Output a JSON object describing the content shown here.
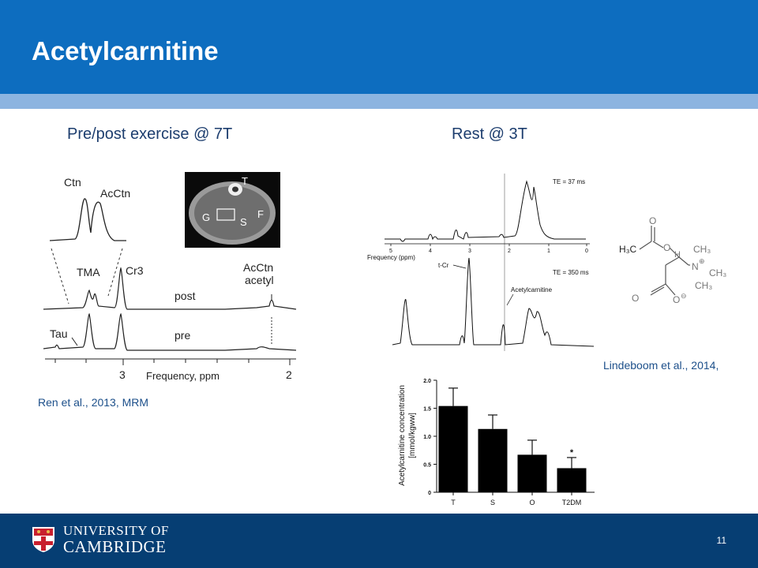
{
  "slide": {
    "title": "Acetylcarnitine",
    "left_heading": "Pre/post exercise @ 7T",
    "right_heading": "Rest @ 3T",
    "left_citation": "Ren et al., 2013, MRM",
    "right_citation": "Lindeboom et al., 2014,",
    "page_number": "11"
  },
  "footer": {
    "university_line1": "UNIVERSITY OF",
    "university_line2": "CAMBRIDGE"
  },
  "left_figure": {
    "labels": {
      "ctn": "Ctn",
      "acctn": "AcCtn",
      "tma": "TMA",
      "cr3": "Cr3",
      "acctn_acetyl_1": "AcCtn",
      "acctn_acetyl_2": "acetyl",
      "post": "post",
      "pre": "pre",
      "tau": "Tau",
      "tick_3": "3",
      "tick_2": "2",
      "freq": "Frequency, ppm"
    },
    "mri_labels": {
      "t": "T",
      "g": "G",
      "s": "S",
      "f": "F"
    }
  },
  "right_spectrum": {
    "te1": "TE = 37 ms",
    "te2": "TE = 350 ms",
    "freq_label": "Frequency (ppm)",
    "ticks": [
      "5",
      "4",
      "3",
      "2",
      "1",
      "0"
    ],
    "tcr": "t-Cr",
    "acetylcarnitine": "Acetylcarnitine"
  },
  "structure": {
    "h3c": "H₃C",
    "h": "H",
    "ch3a": "CH₃",
    "ch3b": "CH₃",
    "ch3c": "CH₃",
    "n": "N",
    "plus": "⊕",
    "o1": "O",
    "o2": "O",
    "o3": "O",
    "minus": "⊖"
  },
  "chart_data": {
    "type": "bar",
    "categories": [
      "T",
      "S",
      "O",
      "T2DM"
    ],
    "values": [
      1.54,
      1.13,
      0.67,
      0.43
    ],
    "errors": [
      0.32,
      0.25,
      0.26,
      0.19
    ],
    "ylabel_line1": "Acetylcarnitine concentration",
    "ylabel_line2": "[mmol/kgww]",
    "yticks": [
      "0",
      "0.5",
      "1.0",
      "1.5",
      "2.0"
    ],
    "ylim": [
      0,
      2.0
    ],
    "annotation": "*",
    "bar_color": "#000000"
  }
}
